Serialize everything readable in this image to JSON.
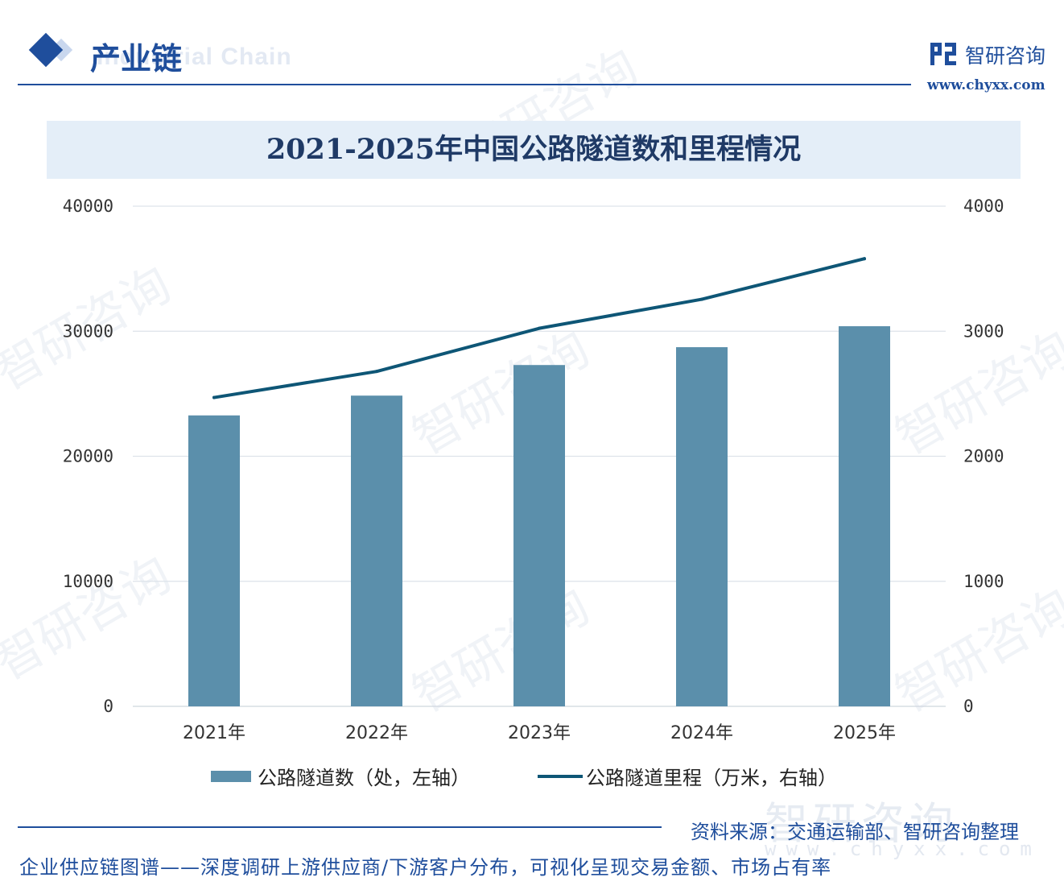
{
  "header": {
    "section_title": "产业链",
    "section_subtitle": "Industrial Chain",
    "brand_name": "智研咨询",
    "brand_url": "www.chyxx.com"
  },
  "watermark": {
    "text": "智研咨询",
    "url": "www.chyxx.com"
  },
  "chart_data": {
    "type": "bar",
    "title": "2021-2025年中国公路隧道数和里程情况",
    "categories": [
      "2021年",
      "2022年",
      "2023年",
      "2024年",
      "2025年"
    ],
    "series": [
      {
        "name": "公路隧道数（处，左轴）",
        "type": "bar",
        "axis": "left",
        "color": "#5b8fab",
        "values": [
          23268,
          24850,
          27297,
          28724,
          30400
        ]
      },
      {
        "name": "公路隧道里程（万米，右轴）",
        "type": "line",
        "axis": "right",
        "color": "#0e5676",
        "values": [
          2469.9,
          2678.4,
          3023.2,
          3255.6,
          3580
        ]
      }
    ],
    "y_left": {
      "min": 0,
      "max": 40000,
      "ticks": [
        0,
        10000,
        20000,
        30000,
        40000
      ]
    },
    "y_right": {
      "min": 0,
      "max": 4000,
      "ticks": [
        0,
        1000,
        2000,
        3000,
        4000
      ]
    },
    "grid": true,
    "legend": "bottom"
  },
  "footer": {
    "source": "资料来源：交通运输部、智研咨询整理",
    "slogan": "企业供应链图谱——深度调研上游供应商/下游客户分布，可视化呈现交易金额、市场占有率"
  }
}
